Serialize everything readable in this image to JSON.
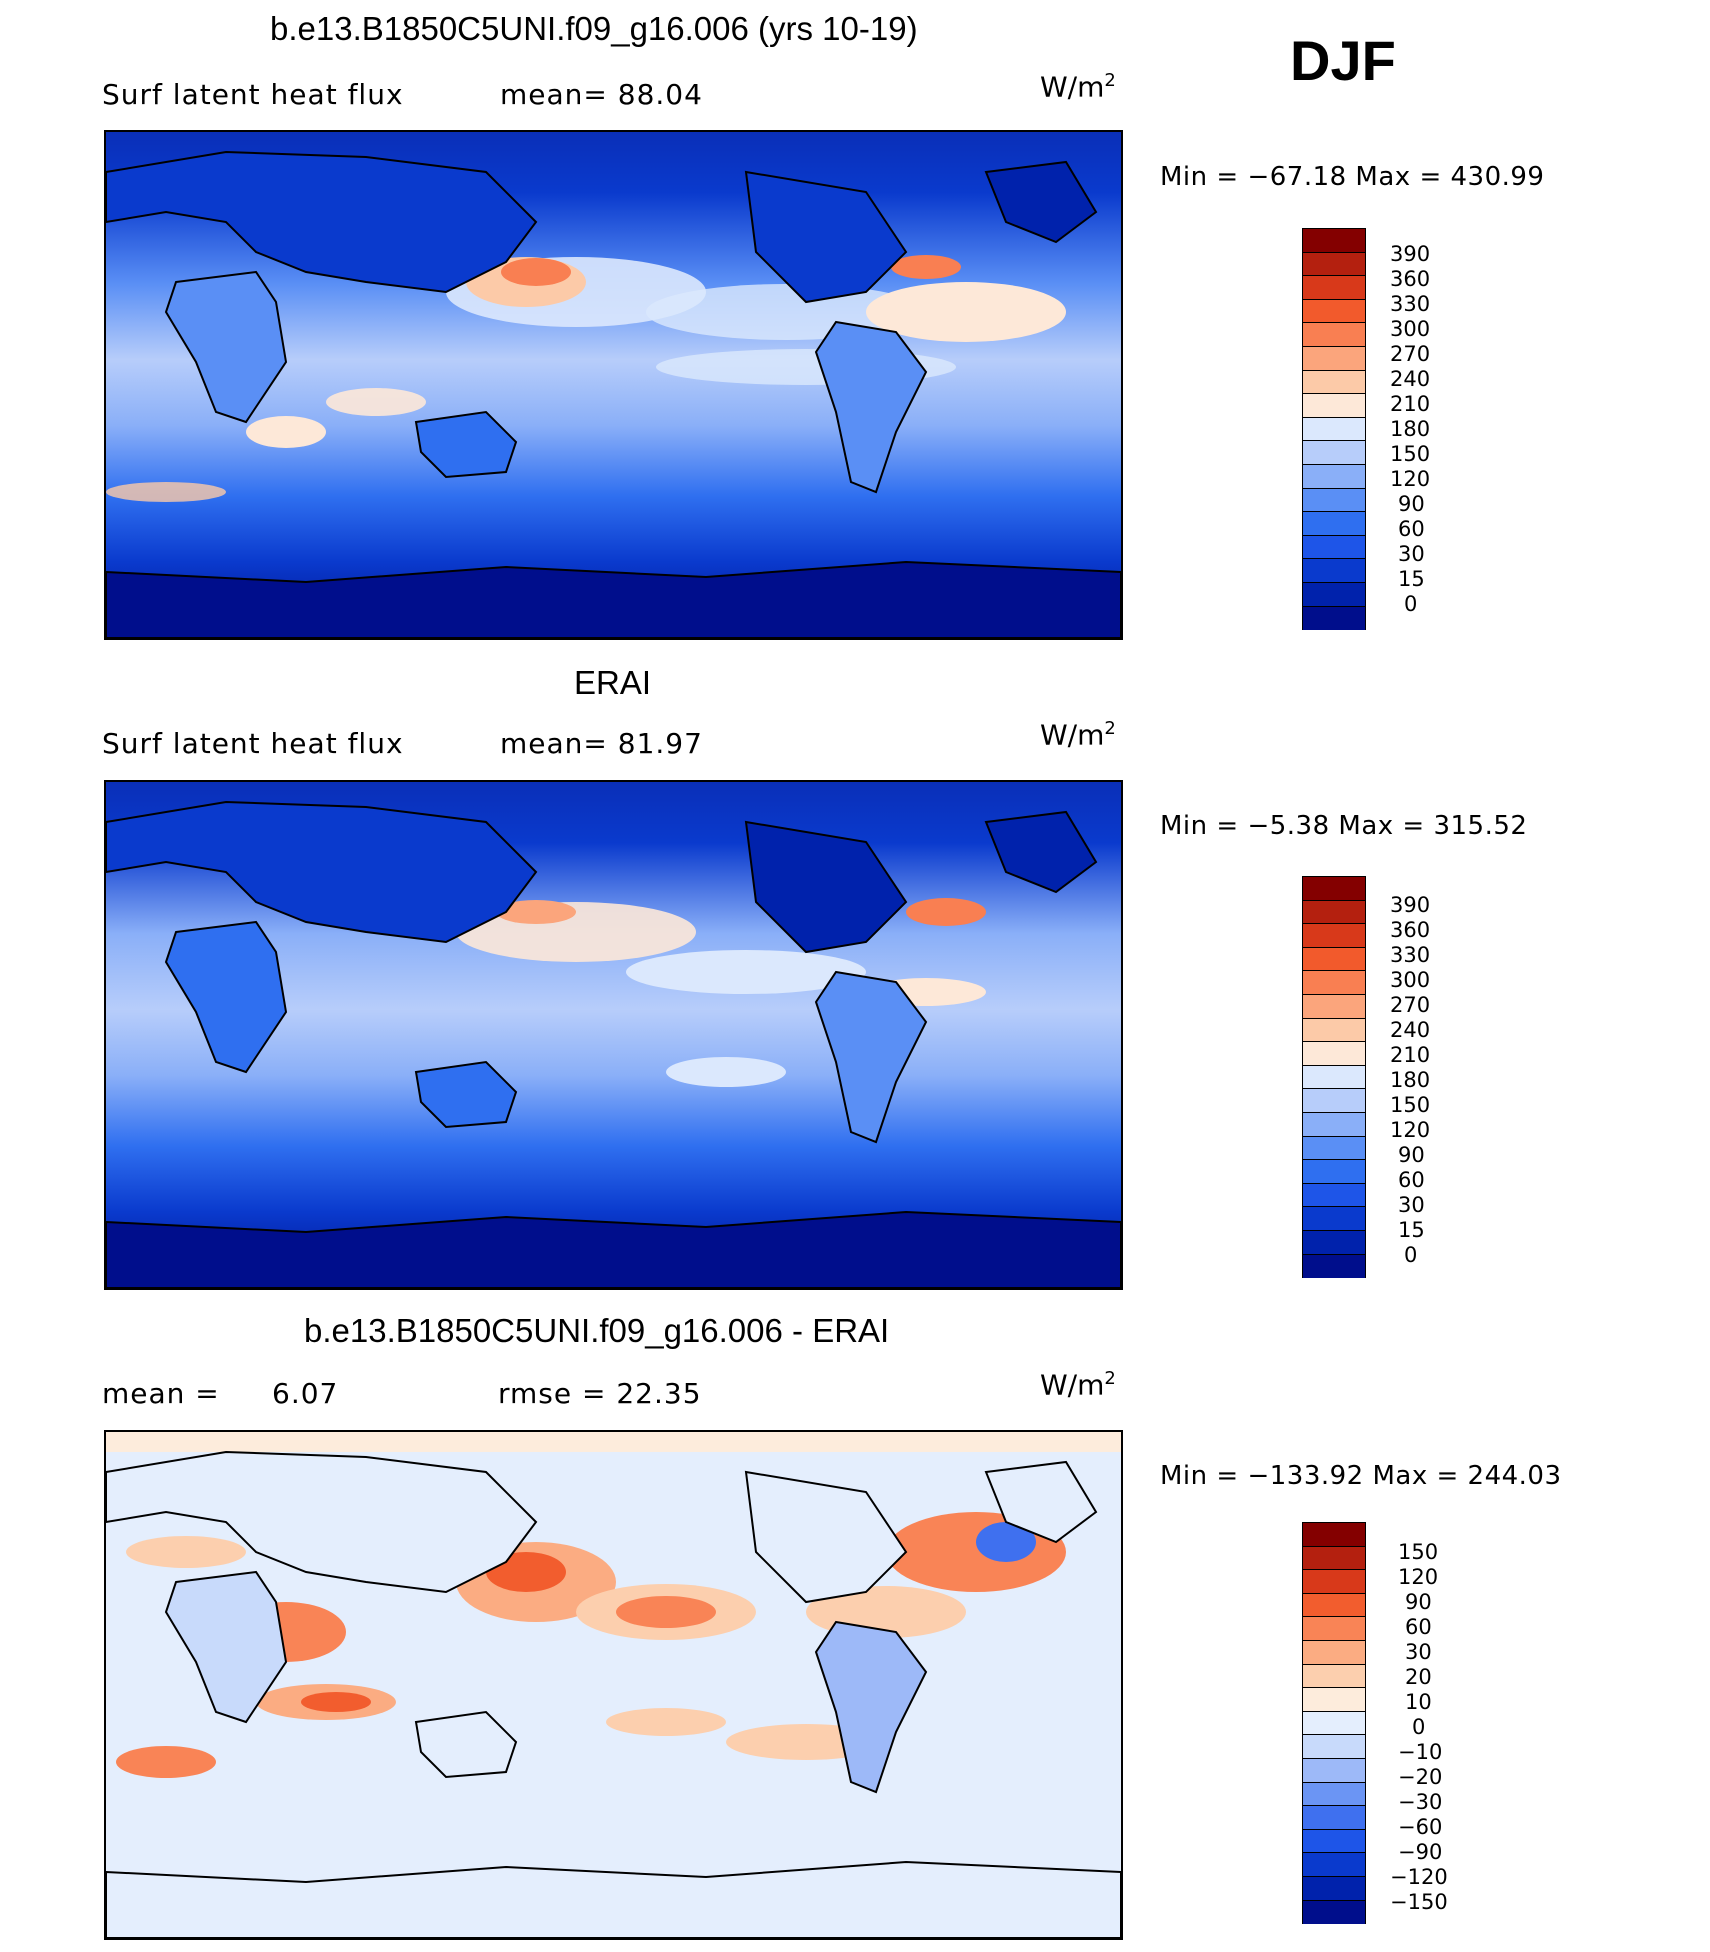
{
  "season": "DJF",
  "colors": {
    "abs_levels": [
      "#000e8c",
      "#0022ac",
      "#0a3acd",
      "#1e55e8",
      "#2f6ff0",
      "#5a8ff5",
      "#8aaff8",
      "#b7cdfa",
      "#dbe8fd",
      "#fde8d8",
      "#fccaa8",
      "#fba57c",
      "#f97f52",
      "#f25a2c",
      "#d8391a",
      "#b4200f",
      "#840000"
    ],
    "diff_levels": [
      "#000e8c",
      "#0022ac",
      "#0a3acd",
      "#1e55e8",
      "#3f70ef",
      "#6b95f4",
      "#9db9f8",
      "#c8dafb",
      "#e4eefd",
      "#fdecdc",
      "#fccfae",
      "#fbac82",
      "#f98456",
      "#f25d2e",
      "#d8391a",
      "#b4200f",
      "#840000"
    ]
  },
  "panels": [
    {
      "title": "b.e13.B1850C5UNI.f09_g16.006 (yrs 10-19)",
      "field_label": "Surf  latent  heat  flux",
      "stat1": "mean=   88.04",
      "stat2": "",
      "units": "W/m",
      "units_sup": "2",
      "minmax": "Min  =  −67.18  Max  =  430.99",
      "colorbar_labels": [
        "390",
        "360",
        "330",
        "300",
        "270",
        "240",
        "210",
        "180",
        "150",
        "120",
        "90",
        "60",
        "30",
        "15",
        "0"
      ]
    },
    {
      "title": "ERAI",
      "field_label": "Surf  latent  heat  flux",
      "stat1": "mean=   81.97",
      "stat2": "",
      "units": "W/m",
      "units_sup": "2",
      "minmax": "Min  =    −5.38  Max  =  315.52",
      "colorbar_labels": [
        "390",
        "360",
        "330",
        "300",
        "270",
        "240",
        "210",
        "180",
        "150",
        "120",
        "90",
        "60",
        "30",
        "15",
        "0"
      ]
    },
    {
      "title": "b.e13.B1850C5UNI.f09_g16.006 - ERAI",
      "field_label": "mean  =",
      "stat1": "6.07",
      "stat2": "rmse  =    22.35",
      "units": "W/m",
      "units_sup": "2",
      "minmax": "Min  =  −133.92  Max  =  244.03",
      "colorbar_labels": [
        "150",
        "120",
        "90",
        "60",
        "30",
        "20",
        "10",
        "0",
        "−10",
        "−20",
        "−30",
        "−60",
        "−90",
        "−120",
        "−150"
      ]
    }
  ]
}
